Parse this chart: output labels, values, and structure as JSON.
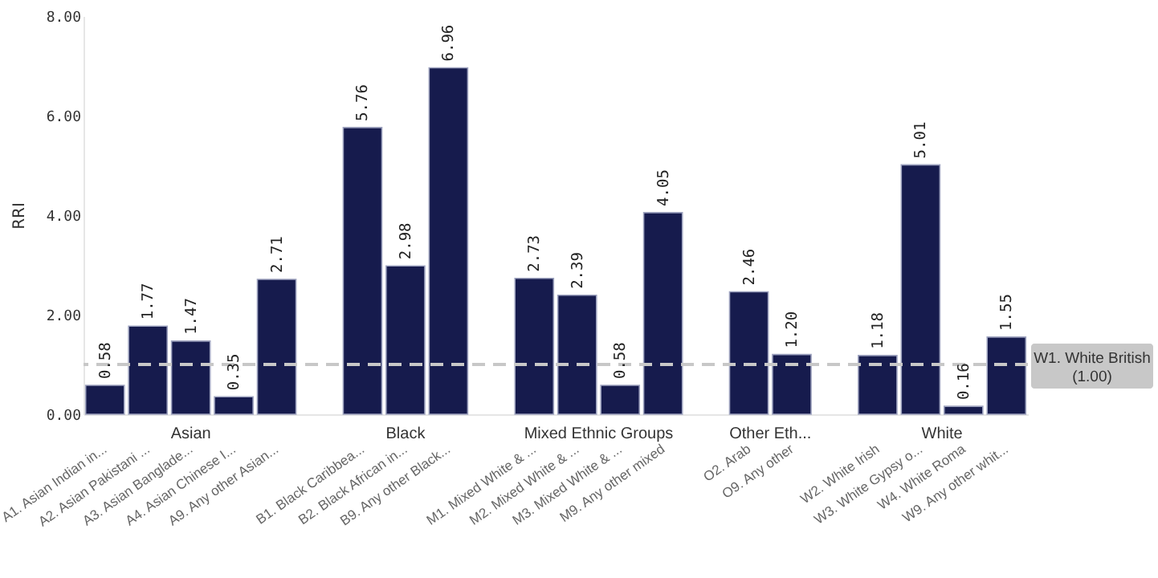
{
  "chart_data": {
    "type": "bar",
    "ylabel": "RRI",
    "categories": [
      "A1. Asian Indian in...",
      "A2. Asian Pakistani ...",
      "A3. Asian Banglade...",
      "A4. Asian Chinese I...",
      "A9. Any other Asian...",
      null,
      "B1. Black Caribbea...",
      "B2. Black African in...",
      "B9. Any other Black...",
      null,
      "M1. Mixed White & ...",
      "M2. Mixed White & ...",
      "M3. Mixed White & ...",
      "M9. Any other mixed",
      null,
      "O2. Arab",
      "O9. Any other",
      null,
      "W2. White Irish",
      "W3. White Gypsy o...",
      "W4. White Roma",
      "W9. Any other whit..."
    ],
    "values": [
      0.58,
      1.77,
      1.47,
      0.35,
      2.71,
      null,
      5.76,
      2.98,
      6.96,
      null,
      2.73,
      2.39,
      0.58,
      4.05,
      null,
      2.46,
      1.2,
      null,
      1.18,
      5.01,
      0.16,
      1.55
    ],
    "value_labels": [
      "0.58",
      "1.77",
      "1.47",
      "0.35",
      "2.71",
      null,
      "5.76",
      "2.98",
      "6.96",
      null,
      "2.73",
      "2.39",
      "0.58",
      "4.05",
      null,
      "2.46",
      "1.20",
      null,
      "1.18",
      "5.01",
      "0.16",
      "1.55"
    ],
    "color": "#161b4d",
    "ylim": [
      0,
      8
    ],
    "yticks": [
      {
        "value": 0,
        "label": "0.00"
      },
      {
        "value": 2,
        "label": "2.00"
      },
      {
        "value": 4,
        "label": "4.00"
      },
      {
        "value": 6,
        "label": "6.00"
      },
      {
        "value": 8,
        "label": "8.00"
      }
    ],
    "ref_lines": [
      {
        "axis": "y",
        "value": 1,
        "label": "W1. White British\n(1.00)",
        "color": "#c8c8c8",
        "line_style": "dashed"
      }
    ],
    "annotations": [
      "Asian",
      "Black",
      "Mixed Ethnic Groups",
      "Other Eth...",
      "White"
    ]
  }
}
